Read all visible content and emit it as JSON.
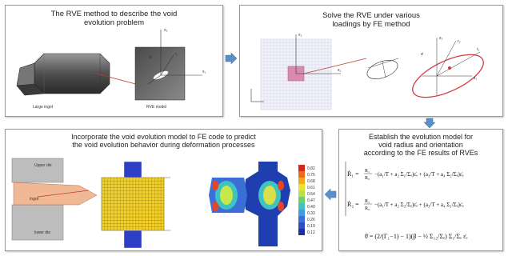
{
  "panels": {
    "rve": {
      "title_line1": "The RVE method to describe the void",
      "title_line2": "evolution problem",
      "label_left": "Large ingot",
      "label_right": "RVE model"
    },
    "fe": {
      "title_line1": "Solve the RVE under various",
      "title_line2": "loadings by FE method"
    },
    "model": {
      "title_line1": "Establish the evolution model for",
      "title_line2": "void radius and orientation",
      "title_line3": "according to the FE results of RVEs"
    },
    "incorporate": {
      "title_line1": "Incorporate the void evolution model to FE code to predict",
      "title_line2": "the void evolution behavior during deformation processes",
      "die_upper": "Upper die",
      "die_lower": "lower die",
      "ingot": "Ingot",
      "legend_values": [
        "0.82",
        "0.75",
        "0.68",
        "0.61",
        "0.54",
        "0.47",
        "0.40",
        "0.33",
        "0.26",
        "0.19",
        "0.12"
      ]
    }
  },
  "colors": {
    "arrow_blue": "#5b8fc9",
    "ellipse_red": "#d23a3a",
    "mesh_yellow": "#f2cf2a",
    "mesh_blue": "#2d3fc4"
  }
}
